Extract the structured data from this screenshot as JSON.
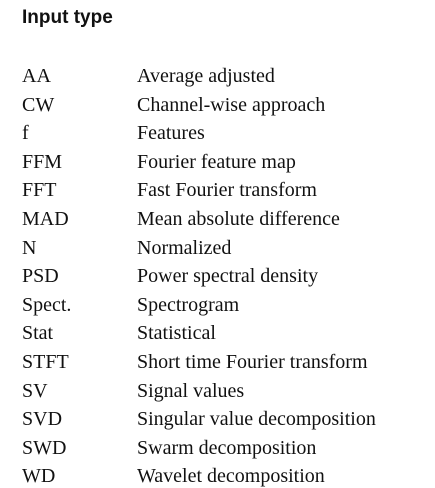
{
  "section": {
    "title": "Input type"
  },
  "abbreviations": [
    {
      "term": "AA",
      "definition": "Average adjusted"
    },
    {
      "term": "CW",
      "definition": "Channel-wise approach"
    },
    {
      "term": "f",
      "definition": "Features"
    },
    {
      "term": "FFM",
      "definition": "Fourier feature map"
    },
    {
      "term": "FFT",
      "definition": "Fast Fourier transform"
    },
    {
      "term": "MAD",
      "definition": "Mean absolute difference"
    },
    {
      "term": "N",
      "definition": "Normalized"
    },
    {
      "term": "PSD",
      "definition": "Power spectral density"
    },
    {
      "term": "Spect.",
      "definition": "Spectrogram"
    },
    {
      "term": "Stat",
      "definition": "Statistical"
    },
    {
      "term": "STFT",
      "definition": "Short time Fourier transform"
    },
    {
      "term": "SV",
      "definition": "Signal values"
    },
    {
      "term": "SVD",
      "definition": "Singular value decomposition"
    },
    {
      "term": "SWD",
      "definition": "Swarm decomposition"
    },
    {
      "term": "WD",
      "definition": "Wavelet decomposition"
    }
  ]
}
